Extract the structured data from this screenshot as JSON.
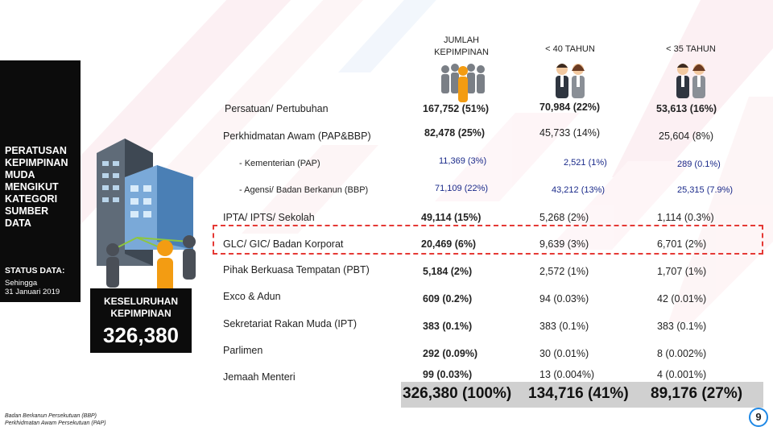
{
  "left": {
    "title_lines": [
      "PERATUSAN",
      "KEPIMPINAN",
      "MUDA",
      "MENGIKUT",
      "KATEGORI",
      "SUMBER",
      "DATA"
    ],
    "status_title": "STATUS DATA:",
    "status_lines": [
      "Sehingga",
      "31 Januari 2019"
    ]
  },
  "total_box": {
    "label_lines": [
      "KESELURUHAN",
      "KEPIMPINAN"
    ],
    "value": "326,380"
  },
  "headers": {
    "col1_lines": [
      "JUMLAH",
      "KEPIMPINAN"
    ],
    "col2": "< 40 TAHUN",
    "col3": "< 35 TAHUN"
  },
  "rows": [
    {
      "label": "Persatuan/ Pertubuhan",
      "c1": "167,752 (51%)",
      "c2": "70,984 (22%)",
      "c3": "53,613 (16%)"
    },
    {
      "label": "Perkhidmatan Awam (PAP&BBP)",
      "c1": "82,478 (25%)",
      "c2": "45,733 (14%)",
      "c3": "25,604 (8%)"
    },
    {
      "label": "- Kementerian (PAP)",
      "c1": "11,369 (3%)",
      "c2": "2,521 (1%)",
      "c3": "289 (0.1%)"
    },
    {
      "label": "- Agensi/ Badan Berkanun (BBP)",
      "c1": "71,109 (22%)",
      "c2": "43,212 (13%)",
      "c3": "25,315 (7.9%)"
    },
    {
      "label": "IPTA/ IPTS/ Sekolah",
      "c1": "49,114 (15%)",
      "c2": "5,268 (2%)",
      "c3": "1,114 (0.3%)"
    },
    {
      "label": "GLC/ GIC/ Badan Korporat",
      "c1": "20,469 (6%)",
      "c2": "9,639 (3%)",
      "c3": "6,701 (2%)"
    },
    {
      "label": "Pihak Berkuasa Tempatan (PBT)",
      "c1": "5,184 (2%)",
      "c2": "2,572 (1%)",
      "c3": "1,707 (1%)"
    },
    {
      "label": "Exco & Adun",
      "c1": "609 (0.2%)",
      "c2": "94 (0.03%)",
      "c3": "42 (0.01%)"
    },
    {
      "label": "Sekretariat Rakan Muda (IPT)",
      "c1": "383 (0.1%)",
      "c2": "383 (0.1%)",
      "c3": "383 (0.1%)"
    },
    {
      "label": "Parlimen",
      "c1": "292 (0.09%)",
      "c2": "30 (0.01%)",
      "c3": "8 (0.002%)"
    },
    {
      "label": "Jemaah Menteri",
      "c1": "99 (0.03%)",
      "c2": "13 (0.004%)",
      "c3": "4 (0.001%)"
    }
  ],
  "totals": {
    "c1": "326,380 (100%)",
    "c2": "134,716 (41%)",
    "c3": "89,176 (27%)"
  },
  "footnote_lines": [
    "Badan Berkanun Persekutuan (BBP)",
    "Perkhidmatan Awam Persekutuan (PAP)"
  ],
  "page_number": "9",
  "colors": {
    "highlight": "#e53935",
    "accent_orange": "#f39c12",
    "dark_panel": "#0c0c0c",
    "sub_value_blue": "#1a2a8a"
  }
}
